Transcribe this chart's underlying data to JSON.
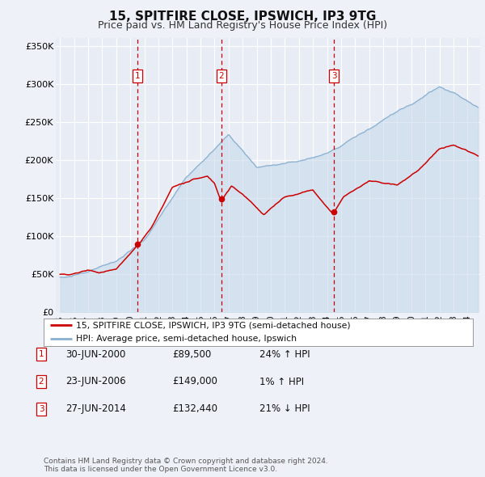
{
  "title": "15, SPITFIRE CLOSE, IPSWICH, IP3 9TG",
  "subtitle": "Price paid vs. HM Land Registry's House Price Index (HPI)",
  "title_fontsize": 11,
  "subtitle_fontsize": 9,
  "ylim": [
    0,
    360000
  ],
  "yticks": [
    0,
    50000,
    100000,
    150000,
    200000,
    250000,
    300000,
    350000
  ],
  "ytick_labels": [
    "£0",
    "£50K",
    "£100K",
    "£150K",
    "£200K",
    "£250K",
    "£300K",
    "£350K"
  ],
  "background_color": "#eef2f8",
  "plot_bg_color": "#e8edf5",
  "grid_color": "#ffffff",
  "red_line_color": "#cc0000",
  "blue_line_color": "#8ab0d0",
  "blue_fill_color": "#c5d8eb",
  "vline_color": "#cc0000",
  "sale1_date_num": 2000.495,
  "sale1_price": 89500,
  "sale2_date_num": 2006.478,
  "sale2_price": 149000,
  "sale3_date_num": 2014.487,
  "sale3_price": 132440,
  "legend1_label": "15, SPITFIRE CLOSE, IPSWICH, IP3 9TG (semi-detached house)",
  "legend2_label": "HPI: Average price, semi-detached house, Ipswich",
  "table_rows": [
    {
      "num": "1",
      "date": "30-JUN-2000",
      "price": "£89,500",
      "hpi": "24% ↑ HPI"
    },
    {
      "num": "2",
      "date": "23-JUN-2006",
      "price": "£149,000",
      "hpi": "1% ↑ HPI"
    },
    {
      "num": "3",
      "date": "27-JUN-2014",
      "price": "£132,440",
      "hpi": "21% ↓ HPI"
    }
  ],
  "footer_line1": "Contains HM Land Registry data © Crown copyright and database right 2024.",
  "footer_line2": "This data is licensed under the Open Government Licence v3.0."
}
